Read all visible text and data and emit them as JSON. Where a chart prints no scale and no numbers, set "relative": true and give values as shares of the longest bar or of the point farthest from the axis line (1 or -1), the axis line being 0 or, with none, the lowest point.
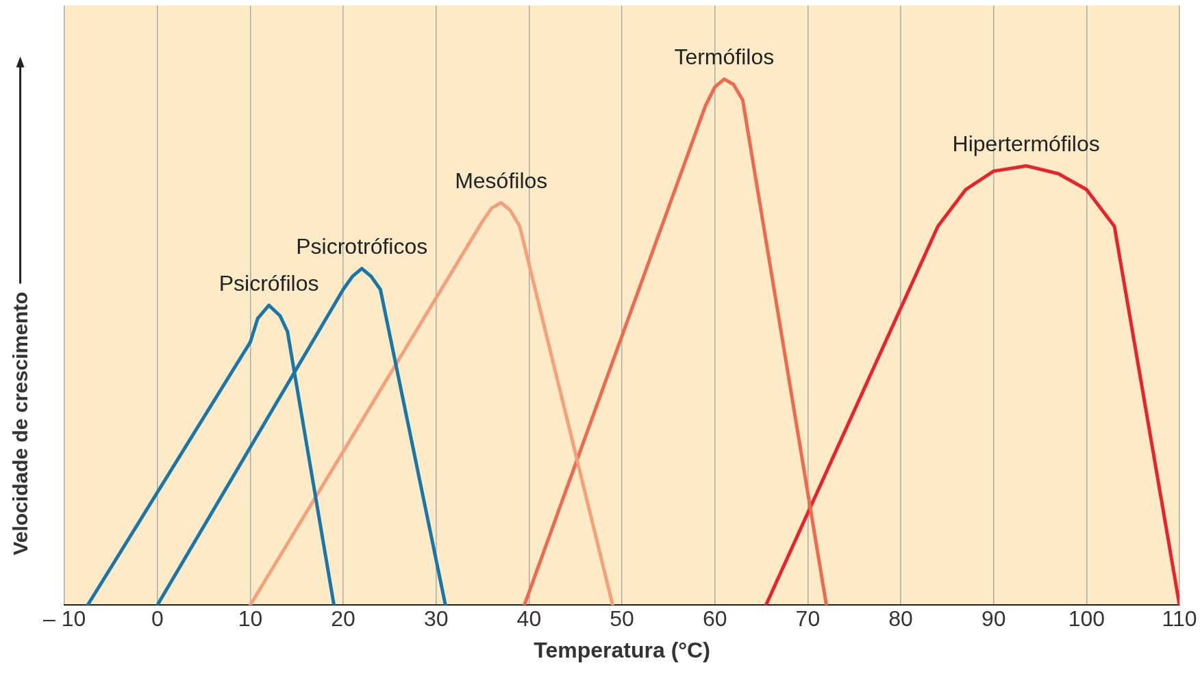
{
  "chart_data": {
    "type": "line",
    "relative": true,
    "xlabel": "Temperatura (°C)",
    "ylabel": "Velocidade de crescimento",
    "xlim": [
      -10,
      110
    ],
    "xticks": [
      {
        "value": -10,
        "label": "– 10"
      },
      0,
      10,
      20,
      30,
      40,
      50,
      60,
      70,
      80,
      90,
      100,
      110
    ],
    "grid": "x",
    "legend": false,
    "marker": "none",
    "line_style": "solid",
    "series": [
      {
        "name": "Psicrófilos",
        "color": "#1a75a8",
        "x": [
          -7.5,
          10,
          10.8,
          12,
          13.2,
          14,
          19
        ],
        "values": [
          0,
          0.5,
          0.545,
          0.57,
          0.55,
          0.52,
          0
        ]
      },
      {
        "name": "Psicrotróficos",
        "color": "#1a75a8",
        "x": [
          0,
          20,
          21,
          22,
          23,
          24,
          31
        ],
        "values": [
          0,
          0.6,
          0.625,
          0.64,
          0.625,
          0.6,
          0
        ]
      },
      {
        "name": "Mesófilos",
        "color": "#f5a07a",
        "x": [
          10,
          35,
          36,
          37,
          38,
          39,
          49
        ],
        "values": [
          0,
          0.73,
          0.755,
          0.765,
          0.75,
          0.72,
          0
        ]
      },
      {
        "name": "Termófilos",
        "color": "#ee6a4f",
        "x": [
          39.5,
          59,
          60,
          61,
          62,
          63,
          72
        ],
        "values": [
          0,
          0.95,
          0.985,
          1,
          0.99,
          0.96,
          0
        ]
      },
      {
        "name": "Hipertermófilos",
        "color": "#e8232a",
        "x": [
          65.5,
          84,
          87,
          90,
          93.5,
          97,
          100,
          103,
          110
        ],
        "values": [
          0,
          0.72,
          0.79,
          0.825,
          0.835,
          0.82,
          0.79,
          0.72,
          0
        ]
      }
    ]
  }
}
